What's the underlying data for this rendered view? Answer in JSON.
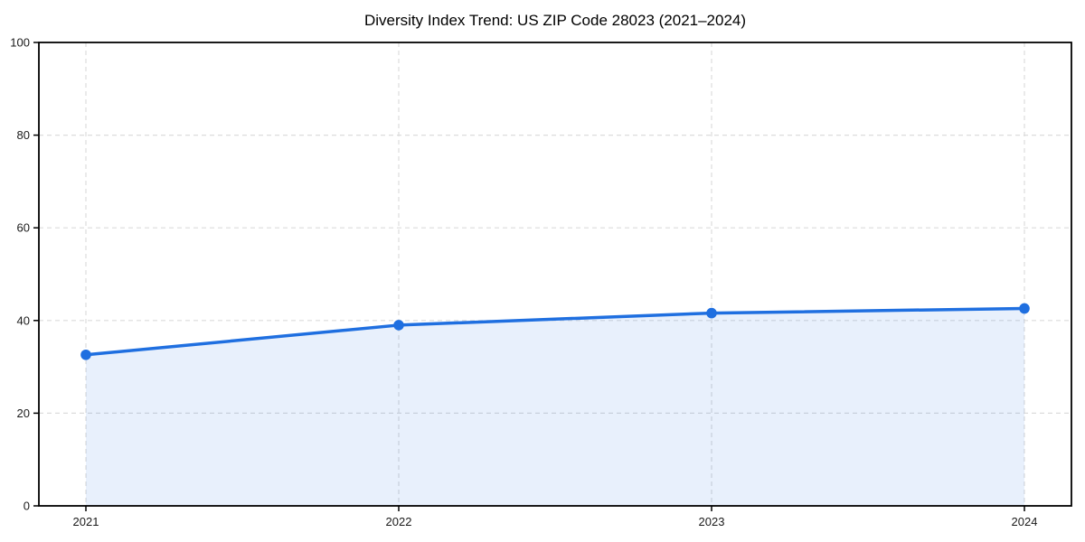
{
  "figure": {
    "background": "#ffffff"
  },
  "chart_data": {
    "type": "line",
    "title": "Diversity Index Trend: US ZIP Code 28023 (2021–2024)",
    "x": [
      "2021",
      "2022",
      "2023",
      "2024"
    ],
    "series": [
      {
        "name": "Diversity Index",
        "values": [
          32.6,
          39.0,
          41.6,
          42.6
        ]
      }
    ],
    "xlabel": "",
    "ylabel": "",
    "ylim": [
      0,
      100
    ],
    "yticks": [
      0,
      20,
      40,
      60,
      80,
      100
    ],
    "grid": true,
    "grid_style": "dashed",
    "legend_position": "none",
    "area_fill": true,
    "colors": {
      "line": "#1f6fe0",
      "marker": "#1f6fe0",
      "fill": "rgba(31, 111, 224, 0.10)",
      "grid": "#dcdcdc",
      "spine": "#000000",
      "tick_text": "#1a1a1a",
      "title_text": "#000000"
    }
  }
}
